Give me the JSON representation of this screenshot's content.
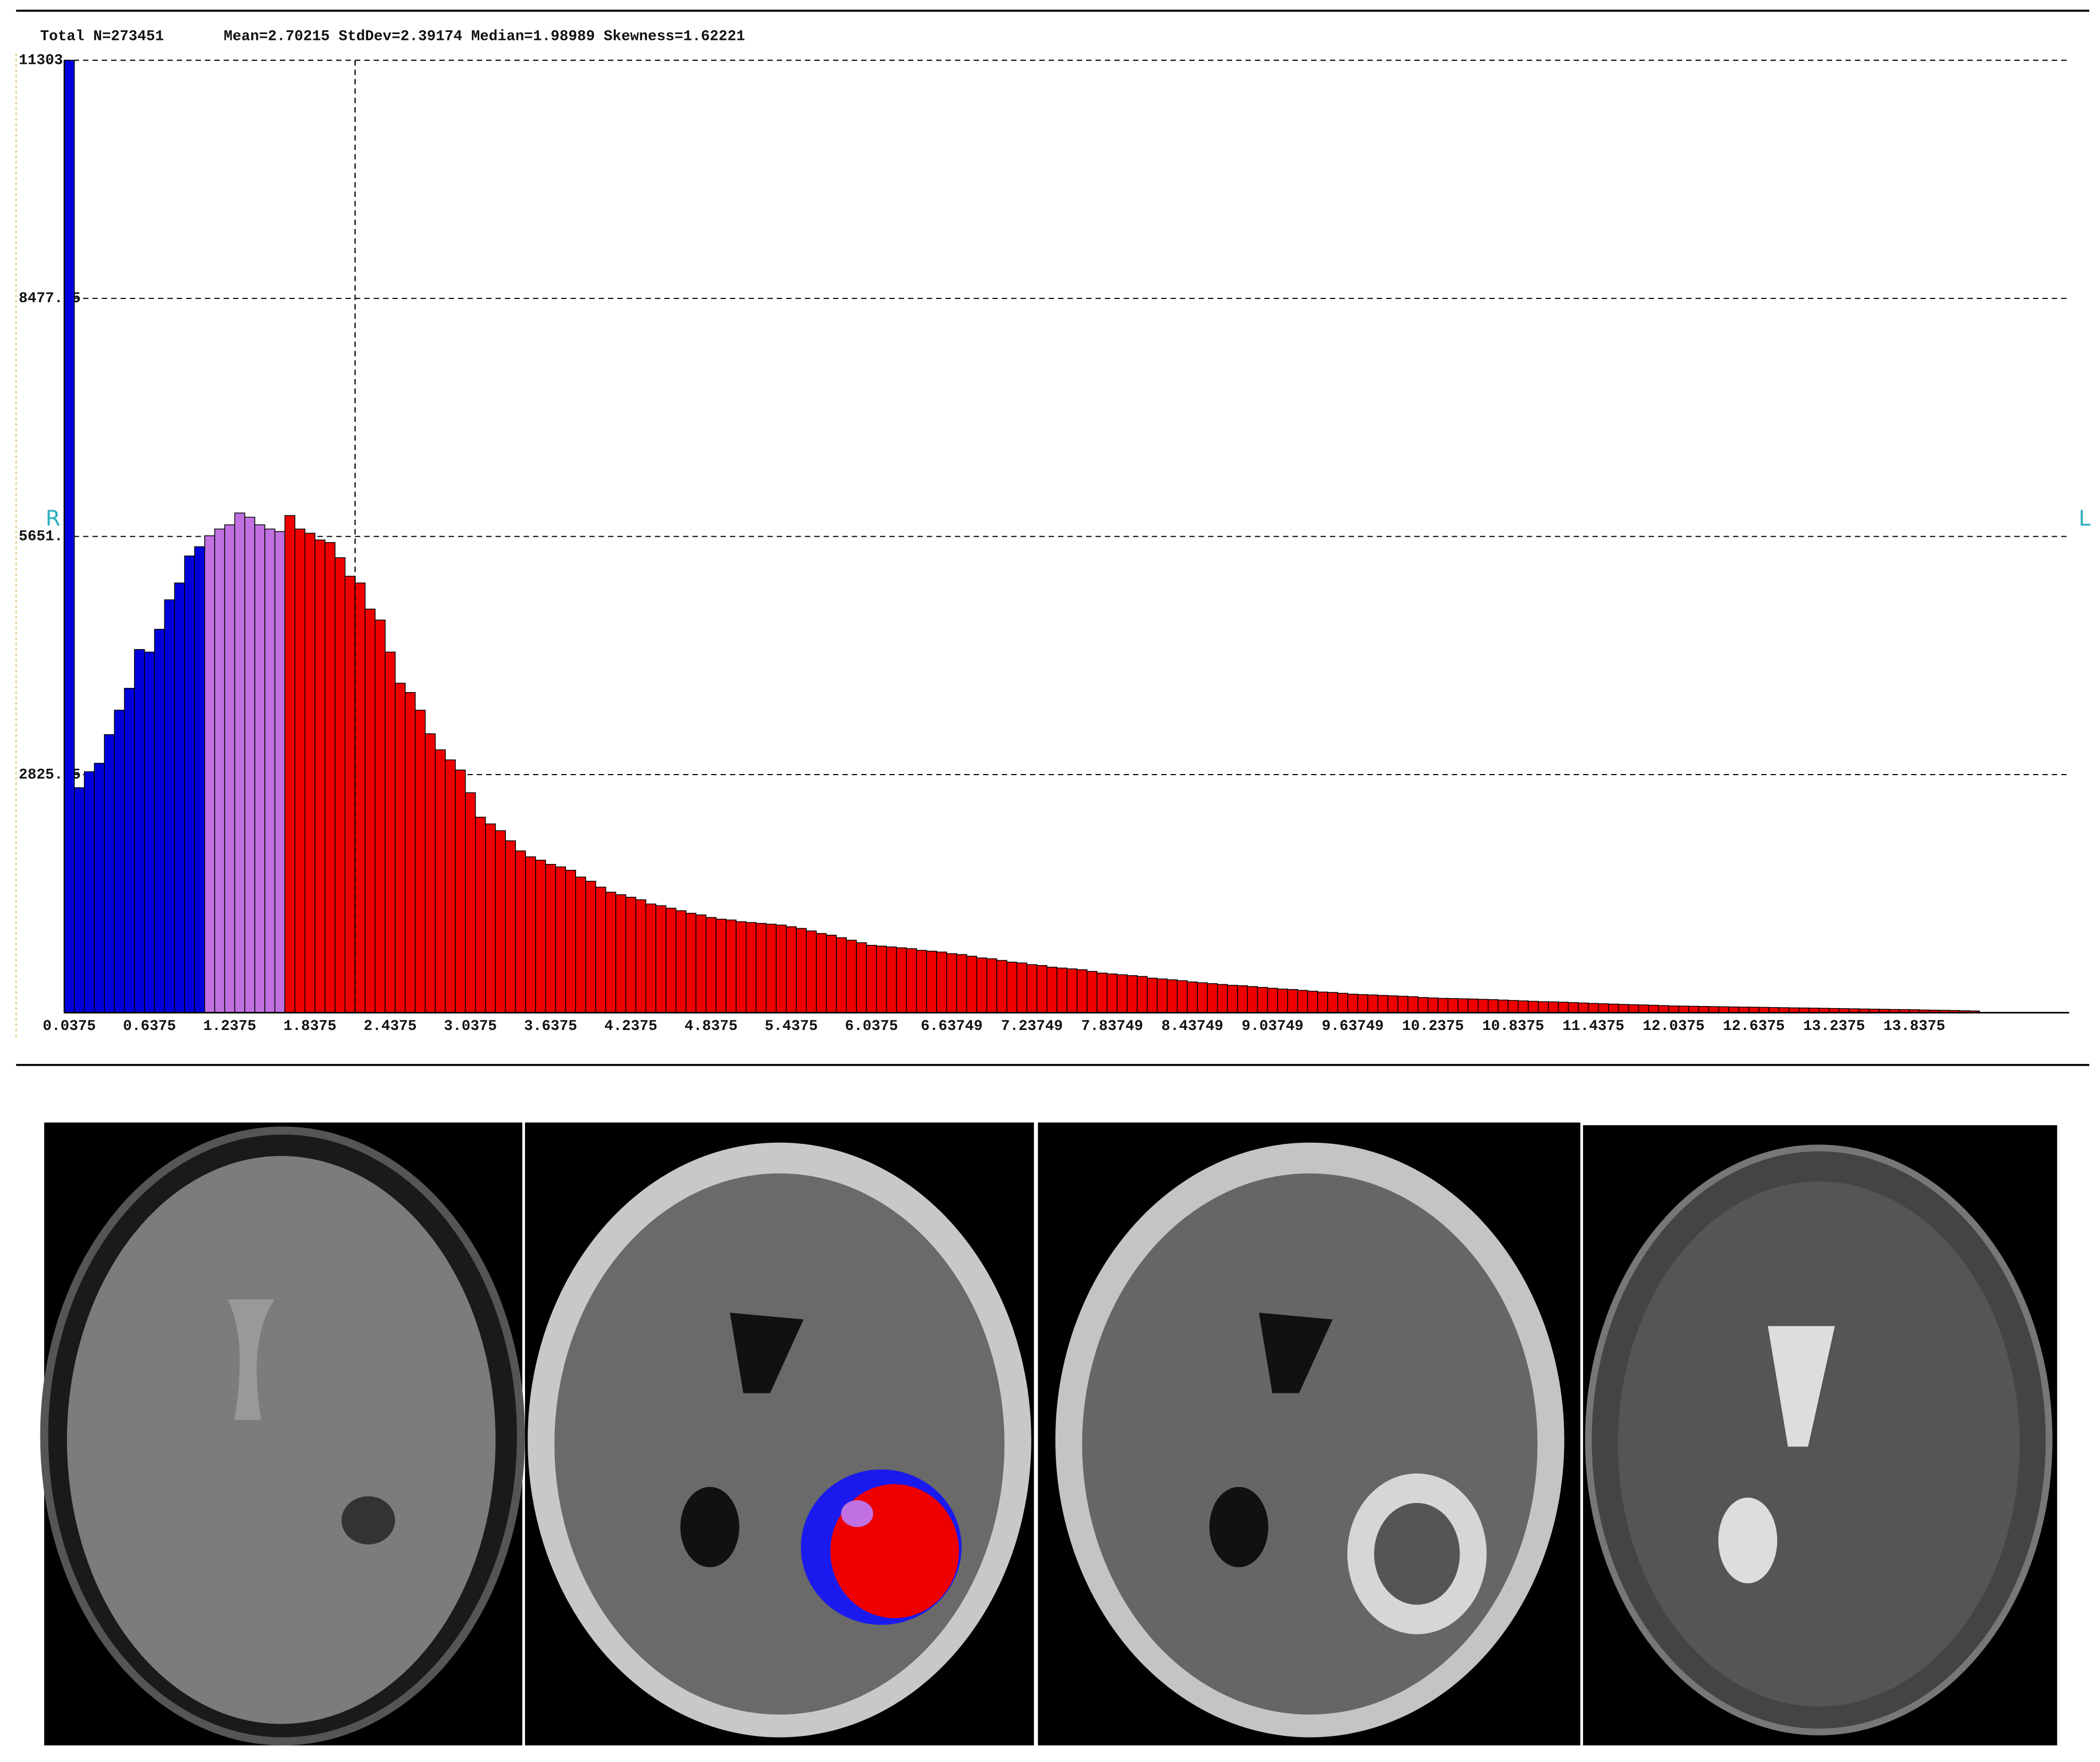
{
  "chart_data": {
    "type": "bar",
    "stats_labels": [
      "Total N=273451",
      "Mean=2.70215 StdDev=2.39174 Median=1.98989 Skewness=1.62221"
    ],
    "side_labels": [
      "R",
      "L"
    ],
    "categories": [
      "0.0375",
      null,
      null,
      null,
      null,
      null,
      null,
      null,
      "0.6375",
      null,
      null,
      null,
      null,
      null,
      null,
      null,
      "1.2375",
      null,
      null,
      null,
      null,
      null,
      null,
      null,
      "1.8375",
      null,
      null,
      null,
      null,
      null,
      null,
      null,
      "2.4375",
      null,
      null,
      null,
      null,
      null,
      null,
      null,
      "3.0375",
      null,
      null,
      null,
      null,
      null,
      null,
      null,
      "3.6375",
      null,
      null,
      null,
      null,
      null,
      null,
      null,
      "4.2375",
      null,
      null,
      null,
      null,
      null,
      null,
      null,
      "4.8375",
      null,
      null,
      null,
      null,
      null,
      null,
      null,
      "5.4375",
      null,
      null,
      null,
      null,
      null,
      null,
      null,
      "6.0375",
      null,
      null,
      null,
      null,
      null,
      null,
      null,
      "6.63749",
      null,
      null,
      null,
      null,
      null,
      null,
      null,
      "7.23749",
      null,
      null,
      null,
      null,
      null,
      null,
      null,
      "7.83749",
      null,
      null,
      null,
      null,
      null,
      null,
      null,
      "8.43749",
      null,
      null,
      null,
      null,
      null,
      null,
      null,
      "9.03749",
      null,
      null,
      null,
      null,
      null,
      null,
      null,
      "9.63749",
      null,
      null,
      null,
      null,
      null,
      null,
      null,
      "10.2375",
      null,
      null,
      null,
      null,
      null,
      null,
      null,
      "10.8375",
      null,
      null,
      null,
      null,
      null,
      null,
      null,
      "11.4375",
      null,
      null,
      null,
      null,
      null,
      null,
      null,
      "12.0375",
      null,
      null,
      null,
      null,
      null,
      null,
      null,
      "12.6375",
      null,
      null,
      null,
      null,
      null,
      null,
      null,
      "13.2375",
      null,
      null,
      null,
      null,
      null,
      null,
      null,
      "13.8375",
      null,
      null,
      null,
      null,
      null,
      null
    ],
    "values": [
      11303,
      2670,
      2860,
      2960,
      3300,
      3590,
      3850,
      4310,
      4280,
      4550,
      4900,
      5100,
      5420,
      5530,
      5660,
      5740,
      5790,
      5930,
      5880,
      5790,
      5740,
      5710,
      5900,
      5740,
      5690,
      5610,
      5580,
      5400,
      5180,
      5100,
      4790,
      4660,
      4280,
      3910,
      3800,
      3590,
      3310,
      3120,
      3000,
      2880,
      2610,
      2320,
      2240,
      2160,
      2040,
      1920,
      1850,
      1810,
      1760,
      1730,
      1690,
      1610,
      1560,
      1490,
      1430,
      1400,
      1370,
      1340,
      1290,
      1270,
      1240,
      1210,
      1180,
      1160,
      1130,
      1110,
      1100,
      1080,
      1070,
      1060,
      1050,
      1040,
      1020,
      1000,
      970,
      940,
      920,
      890,
      860,
      830,
      800,
      790,
      780,
      770,
      760,
      740,
      730,
      720,
      700,
      690,
      670,
      650,
      640,
      620,
      600,
      590,
      570,
      560,
      540,
      530,
      520,
      510,
      490,
      470,
      460,
      450,
      440,
      430,
      410,
      400,
      390,
      380,
      365,
      355,
      345,
      335,
      325,
      320,
      310,
      300,
      290,
      280,
      275,
      265,
      255,
      245,
      240,
      230,
      220,
      215,
      210,
      205,
      200,
      195,
      190,
      180,
      175,
      170,
      168,
      165,
      162,
      158,
      155,
      150,
      145,
      140,
      135,
      130,
      128,
      125,
      120,
      115,
      110,
      106,
      102,
      98,
      95,
      92,
      88,
      84,
      80,
      78,
      76,
      74,
      72,
      70,
      68,
      66,
      65,
      63,
      61,
      59,
      57,
      56,
      54,
      52,
      50,
      48,
      46,
      44,
      42,
      40,
      38,
      37,
      35,
      32,
      30,
      28,
      26,
      23,
      20
    ],
    "colors": [
      "#0000dd",
      "#0000dd",
      "#0000dd",
      "#0000dd",
      "#0000dd",
      "#0000dd",
      "#0000dd",
      "#0000dd",
      "#0000dd",
      "#0000dd",
      "#0000dd",
      "#0000dd",
      "#0000dd",
      "#0000dd",
      "#c070e0",
      "#c070e0",
      "#c070e0",
      "#c070e0",
      "#c070e0",
      "#c070e0",
      "#c070e0",
      "#c070e0",
      "#ee0000",
      "#ee0000",
      "#ee0000",
      "#ee0000",
      "#ee0000",
      "#ee0000",
      "#ee0000",
      "#ee0000",
      "#ee0000",
      "#ee0000",
      "#ee0000",
      "#ee0000",
      "#ee0000",
      "#ee0000",
      "#ee0000",
      "#ee0000",
      "#ee0000",
      "#ee0000",
      "#ee0000",
      "#ee0000",
      "#ee0000",
      "#ee0000",
      "#ee0000",
      "#ee0000",
      "#ee0000",
      "#ee0000",
      "#ee0000",
      "#ee0000",
      "#ee0000",
      "#ee0000",
      "#ee0000",
      "#ee0000",
      "#ee0000",
      "#ee0000",
      "#ee0000",
      "#ee0000",
      "#ee0000",
      "#ee0000",
      "#ee0000",
      "#ee0000",
      "#ee0000",
      "#ee0000",
      "#ee0000",
      "#ee0000",
      "#ee0000",
      "#ee0000",
      "#ee0000",
      "#ee0000",
      "#ee0000",
      "#ee0000",
      "#ee0000",
      "#ee0000",
      "#ee0000",
      "#ee0000",
      "#ee0000",
      "#ee0000",
      "#ee0000",
      "#ee0000",
      "#ee0000",
      "#ee0000",
      "#ee0000",
      "#ee0000",
      "#ee0000",
      "#ee0000",
      "#ee0000",
      "#ee0000",
      "#ee0000",
      "#ee0000",
      "#ee0000",
      "#ee0000",
      "#ee0000",
      "#ee0000",
      "#ee0000",
      "#ee0000",
      "#ee0000",
      "#ee0000",
      "#ee0000",
      "#ee0000",
      "#ee0000",
      "#ee0000",
      "#ee0000",
      "#ee0000",
      "#ee0000",
      "#ee0000",
      "#ee0000",
      "#ee0000",
      "#ee0000",
      "#ee0000",
      "#ee0000",
      "#ee0000",
      "#ee0000",
      "#ee0000",
      "#ee0000",
      "#ee0000",
      "#ee0000",
      "#ee0000",
      "#ee0000",
      "#ee0000",
      "#ee0000",
      "#ee0000",
      "#ee0000",
      "#ee0000",
      "#ee0000",
      "#ee0000",
      "#ee0000",
      "#ee0000",
      "#ee0000",
      "#ee0000",
      "#ee0000",
      "#ee0000",
      "#ee0000",
      "#ee0000",
      "#ee0000",
      "#ee0000",
      "#ee0000",
      "#ee0000",
      "#ee0000",
      "#ee0000",
      "#ee0000",
      "#ee0000",
      "#ee0000",
      "#ee0000",
      "#ee0000",
      "#ee0000",
      "#ee0000",
      "#ee0000",
      "#ee0000",
      "#ee0000",
      "#ee0000",
      "#ee0000",
      "#ee0000",
      "#ee0000",
      "#ee0000",
      "#ee0000",
      "#ee0000",
      "#ee0000",
      "#ee0000",
      "#ee0000",
      "#ee0000",
      "#ee0000",
      "#ee0000",
      "#ee0000",
      "#ee0000",
      "#ee0000",
      "#ee0000",
      "#ee0000",
      "#ee0000",
      "#ee0000",
      "#ee0000",
      "#ee0000",
      "#ee0000",
      "#ee0000",
      "#ee0000",
      "#ee0000",
      "#ee0000",
      "#ee0000",
      "#ee0000",
      "#ee0000",
      "#ee0000",
      "#ee0000",
      "#ee0000",
      "#ee0000",
      "#ee0000",
      "#ee0000",
      "#ee0000",
      "#ee0000",
      "#ee0000",
      "#ee0000",
      "#ee0000"
    ],
    "ylim": [
      0,
      11303
    ],
    "yticks": [
      {
        "value": 2825.75,
        "label": "2825.75"
      },
      {
        "value": 5651.5,
        "label": "5651.5"
      },
      {
        "value": 8477.25,
        "label": "8477.25"
      },
      11303
    ],
    "grid": true,
    "cursor_x": 2.175,
    "bin_width": 0.075
  }
}
